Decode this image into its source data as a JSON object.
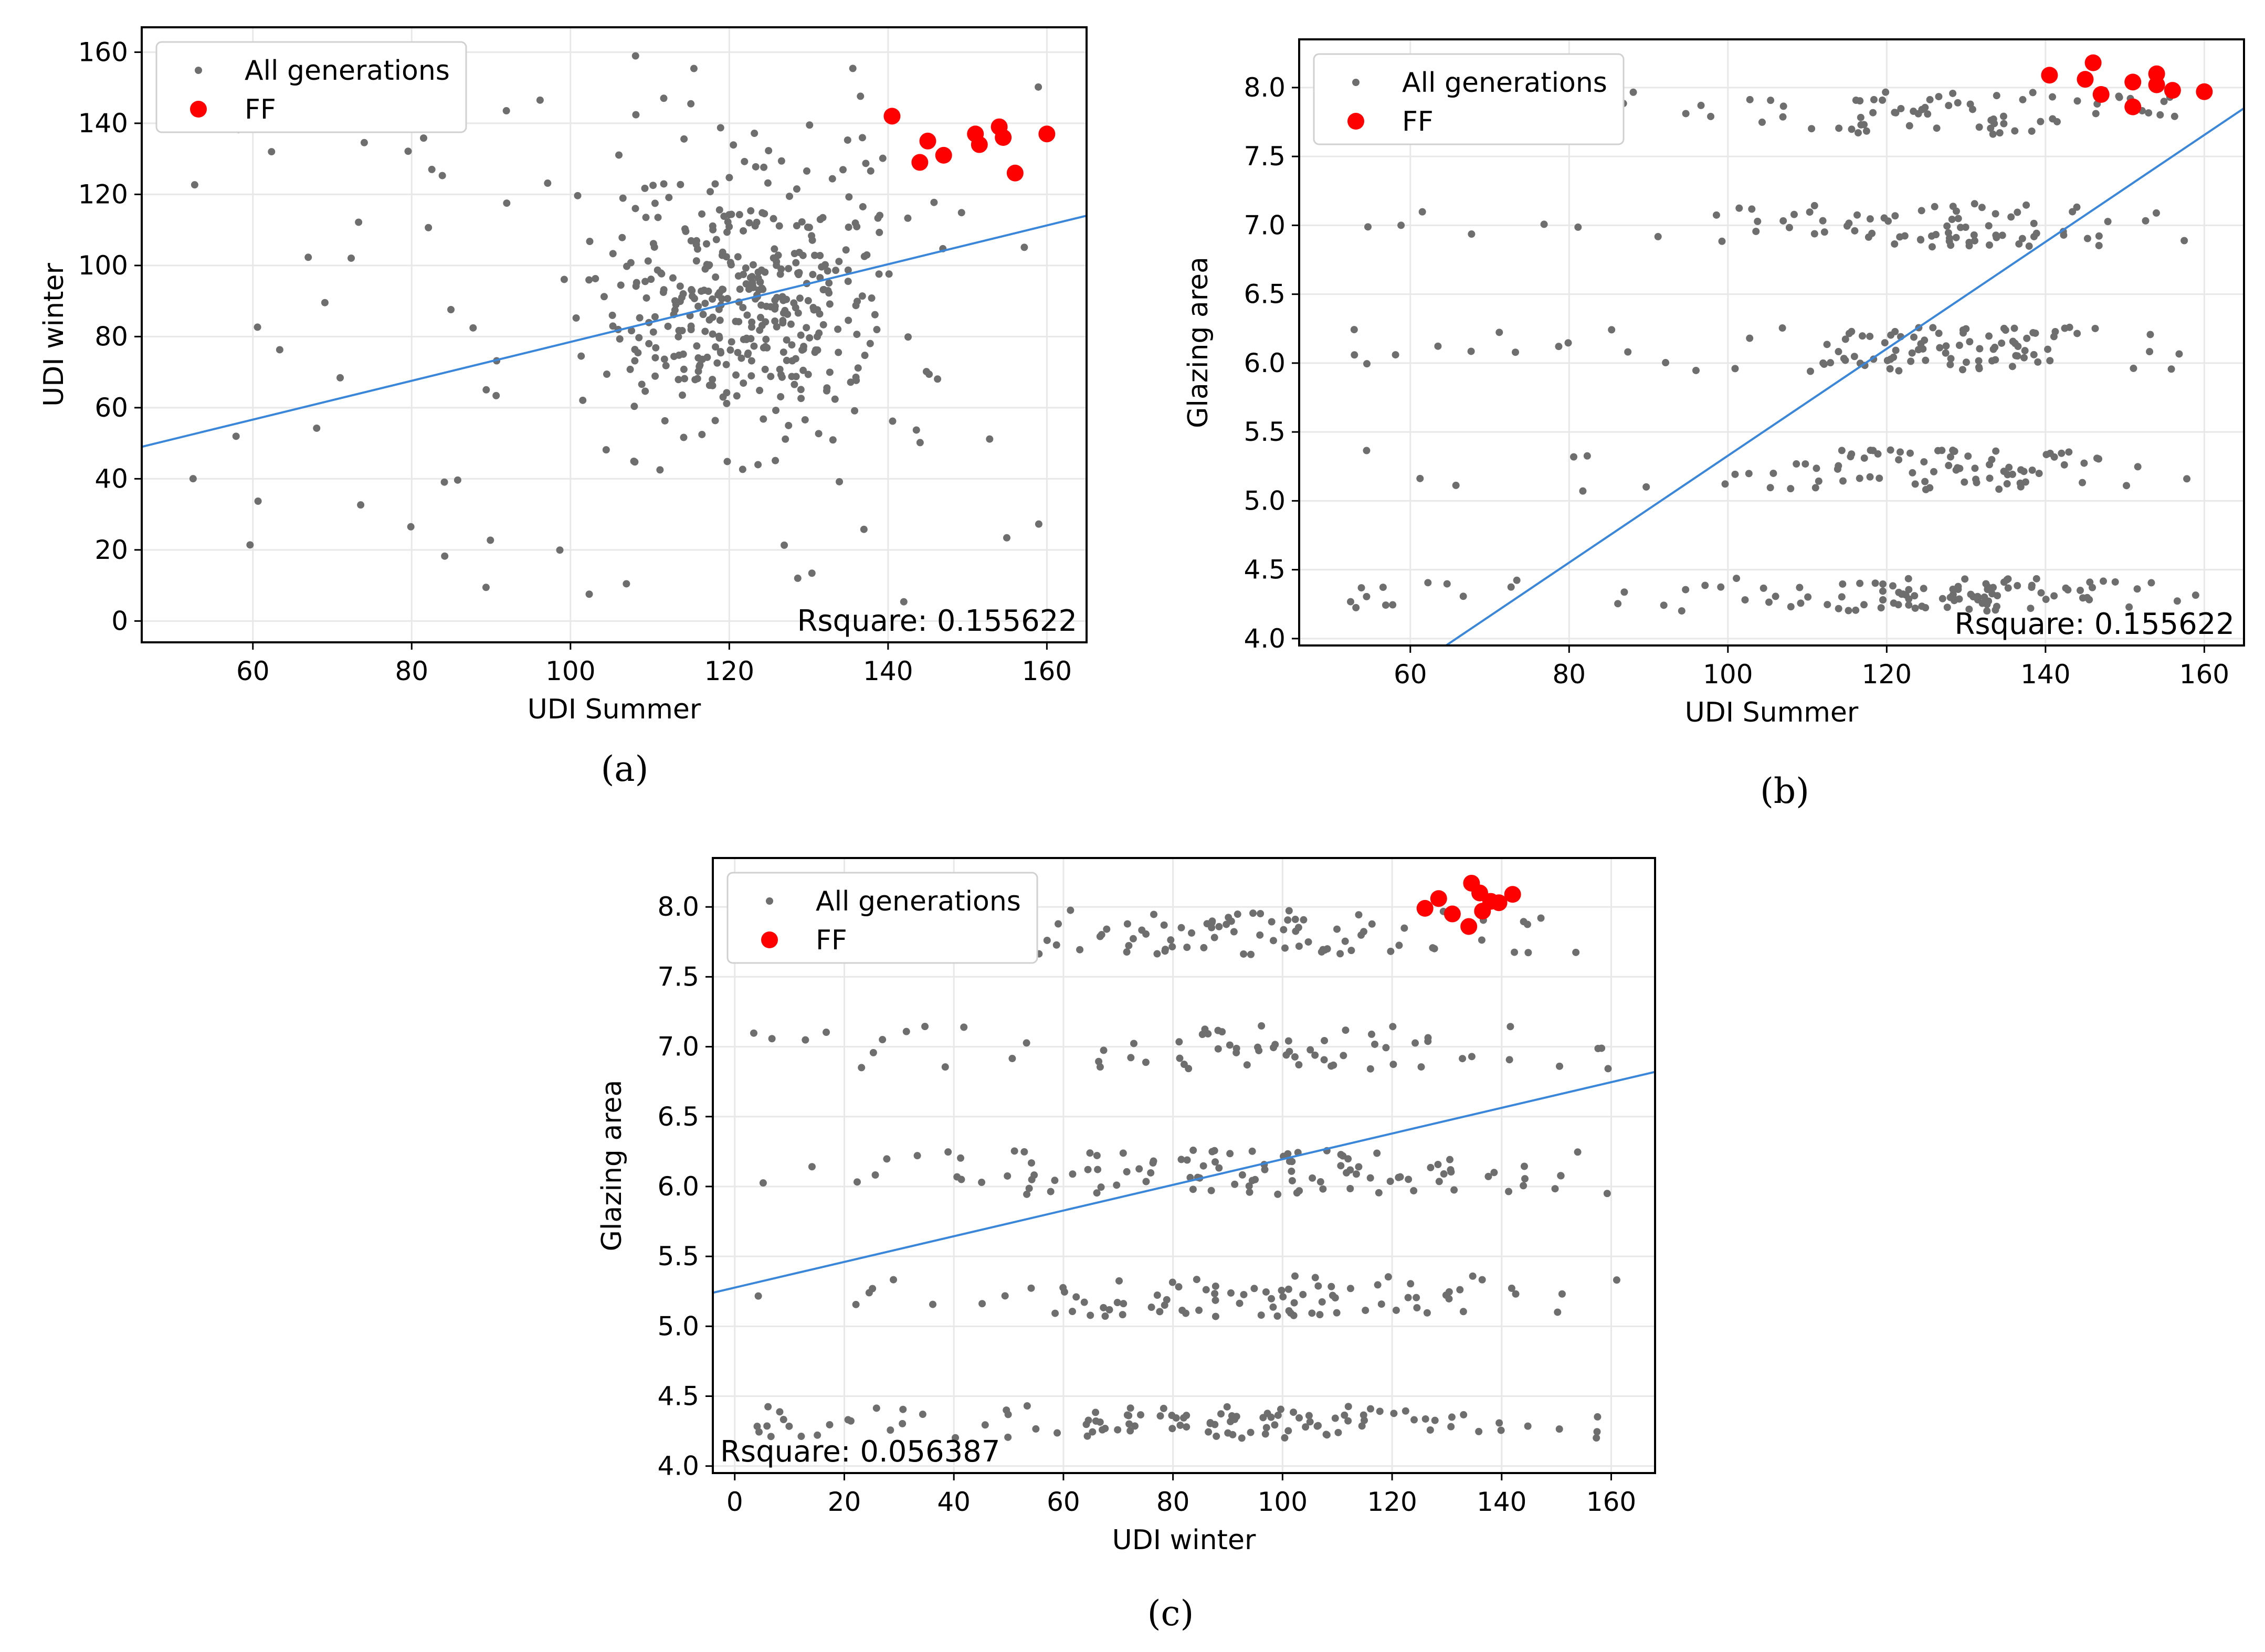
{
  "colors": {
    "population": "#6e6e6e",
    "front": "#ff0000",
    "fit": "#3a86d9",
    "grid": "#e8e8e8",
    "axis": "#000000"
  },
  "chart_data": [
    {
      "panel_label": "(a)",
      "type": "scatter",
      "xlabel": "UDI Summer",
      "ylabel": "UDI winter",
      "xlim": [
        46,
        165
      ],
      "ylim": [
        -6,
        167
      ],
      "xticks": [
        "60",
        "80",
        "100",
        "120",
        "140",
        "160"
      ],
      "yticks": [
        "0",
        "20",
        "40",
        "60",
        "80",
        "100",
        "120",
        "140",
        "160"
      ],
      "legend": {
        "location": "top-left",
        "entries": [
          "All generations",
          "FF"
        ]
      },
      "rsquare_text": "Rsquare: 0.155622",
      "rsquare_location": "bottom-right",
      "fit_line": {
        "x": [
          46,
          165
        ],
        "y": [
          49,
          114
        ]
      },
      "series": [
        {
          "name": "All generations",
          "marker": "small-dot",
          "points_note": "approximately 480 points spread over x 52-159, y 4-160, densest at x 105-145, y 50-130"
        },
        {
          "name": "FF",
          "marker": "large-dot",
          "x": [
            140.5,
            144,
            145,
            147,
            151,
            151.5,
            154,
            154.5,
            156,
            160
          ],
          "y": [
            142,
            129,
            135,
            131,
            137,
            134,
            139,
            136,
            126,
            137
          ]
        }
      ]
    },
    {
      "panel_label": "(b)",
      "type": "scatter",
      "xlabel": "UDI Summer",
      "ylabel": "Glazing area",
      "xlim": [
        46,
        165
      ],
      "ylim": [
        3.95,
        8.35
      ],
      "xticks": [
        "60",
        "80",
        "100",
        "120",
        "140",
        "160"
      ],
      "yticks": [
        "4.0",
        "4.5",
        "5.0",
        "5.5",
        "6.0",
        "6.5",
        "7.0",
        "7.5",
        "8.0"
      ],
      "legend": {
        "location": "top-left",
        "entries": [
          "All generations",
          "FF"
        ]
      },
      "rsquare_text": "Rsquare: 0.155622",
      "rsquare_location": "bottom-right",
      "fit_line": {
        "x": [
          64.5,
          165
        ],
        "y": [
          3.95,
          7.85
        ]
      },
      "series": [
        {
          "name": "All generations",
          "marker": "small-dot",
          "points_note": "approximately 470 points in horizontal bands near 4.3, 5.2, 6.1, 7.0 and 7.8 across x 52-159"
        },
        {
          "name": "FF",
          "marker": "large-dot",
          "x": [
            140.5,
            145,
            146,
            147,
            151,
            151,
            154,
            154,
            156,
            160
          ],
          "y": [
            8.09,
            8.06,
            8.18,
            7.95,
            8.04,
            7.86,
            8.1,
            8.02,
            7.98,
            7.97
          ]
        }
      ]
    },
    {
      "panel_label": "(c)",
      "type": "scatter",
      "xlabel": "UDI winter",
      "ylabel": "Glazing area",
      "xlim": [
        -4,
        168
      ],
      "ylim": [
        3.95,
        8.35
      ],
      "xticks": [
        "0",
        "20",
        "40",
        "60",
        "80",
        "100",
        "120",
        "140",
        "160"
      ],
      "yticks": [
        "4.0",
        "4.5",
        "5.0",
        "5.5",
        "6.0",
        "6.5",
        "7.0",
        "7.5",
        "8.0"
      ],
      "legend": {
        "location": "top-left",
        "entries": [
          "All generations",
          "FF"
        ]
      },
      "rsquare_text": "Rsquare: 0.056387",
      "rsquare_location": "bottom-left",
      "fit_line": {
        "x": [
          -4,
          168
        ],
        "y": [
          5.24,
          6.82
        ]
      },
      "series": [
        {
          "name": "All generations",
          "marker": "small-dot",
          "points_note": "approximately 470 points in horizontal bands near 4.3, 5.2, 6.1, 7.0 and 7.8 across x 3-161"
        },
        {
          "name": "FF",
          "marker": "large-dot",
          "x": [
            126,
            128.5,
            131,
            134,
            134.5,
            136,
            136.5,
            138,
            139.5,
            142
          ],
          "y": [
            7.99,
            8.06,
            7.95,
            7.86,
            8.17,
            8.1,
            7.97,
            8.04,
            8.03,
            8.09
          ]
        }
      ]
    }
  ]
}
